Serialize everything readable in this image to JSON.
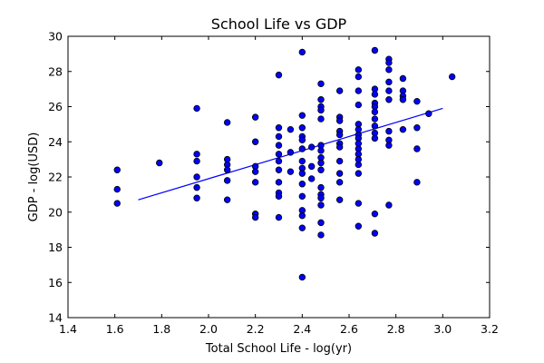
{
  "chart_data": {
    "type": "scatter",
    "title": "School Life vs GDP",
    "xlabel": "Total School Life - log(yr)",
    "ylabel": "GDP - log(USD)",
    "xlim": [
      1.4,
      3.2
    ],
    "ylim": [
      14,
      30
    ],
    "xticks": [
      "1.4",
      "1.6",
      "1.8",
      "2.0",
      "2.2",
      "2.4",
      "2.6",
      "2.8",
      "3.0",
      "3.2"
    ],
    "yticks": [
      "14",
      "16",
      "18",
      "20",
      "22",
      "24",
      "26",
      "28",
      "30"
    ],
    "grid": false,
    "marker_color": "#0000ff",
    "line_color": "#0000ff",
    "fit_line": {
      "x": [
        1.7,
        3.0
      ],
      "y": [
        20.7,
        25.9
      ]
    },
    "points": [
      [
        1.61,
        22.4
      ],
      [
        1.61,
        21.3
      ],
      [
        1.61,
        20.5
      ],
      [
        1.79,
        22.8
      ],
      [
        1.95,
        25.9
      ],
      [
        1.95,
        23.3
      ],
      [
        1.95,
        22.9
      ],
      [
        1.95,
        22.0
      ],
      [
        1.95,
        21.4
      ],
      [
        1.95,
        20.8
      ],
      [
        2.08,
        25.1
      ],
      [
        2.08,
        23.0
      ],
      [
        2.08,
        22.7
      ],
      [
        2.08,
        22.4
      ],
      [
        2.08,
        21.8
      ],
      [
        2.08,
        20.7
      ],
      [
        2.2,
        25.4
      ],
      [
        2.2,
        24.0
      ],
      [
        2.2,
        22.6
      ],
      [
        2.2,
        22.3
      ],
      [
        2.2,
        21.7
      ],
      [
        2.2,
        19.9
      ],
      [
        2.2,
        19.7
      ],
      [
        2.3,
        27.8
      ],
      [
        2.3,
        24.8
      ],
      [
        2.3,
        24.3
      ],
      [
        2.3,
        23.8
      ],
      [
        2.3,
        23.3
      ],
      [
        2.3,
        22.9
      ],
      [
        2.3,
        22.4
      ],
      [
        2.3,
        21.7
      ],
      [
        2.3,
        21.1
      ],
      [
        2.3,
        20.9
      ],
      [
        2.3,
        19.7
      ],
      [
        2.35,
        24.7
      ],
      [
        2.35,
        23.4
      ],
      [
        2.35,
        22.3
      ],
      [
        2.4,
        29.1
      ],
      [
        2.4,
        25.5
      ],
      [
        2.4,
        24.8
      ],
      [
        2.4,
        24.3
      ],
      [
        2.4,
        24.1
      ],
      [
        2.4,
        23.6
      ],
      [
        2.4,
        22.9
      ],
      [
        2.4,
        22.5
      ],
      [
        2.4,
        22.2
      ],
      [
        2.4,
        21.6
      ],
      [
        2.4,
        20.9
      ],
      [
        2.4,
        20.1
      ],
      [
        2.4,
        19.8
      ],
      [
        2.4,
        19.1
      ],
      [
        2.4,
        16.3
      ],
      [
        2.44,
        23.7
      ],
      [
        2.44,
        22.6
      ],
      [
        2.44,
        21.9
      ],
      [
        2.48,
        27.3
      ],
      [
        2.48,
        26.4
      ],
      [
        2.48,
        26.0
      ],
      [
        2.48,
        25.8
      ],
      [
        2.48,
        25.3
      ],
      [
        2.48,
        23.8
      ],
      [
        2.48,
        23.5
      ],
      [
        2.48,
        23.1
      ],
      [
        2.48,
        22.8
      ],
      [
        2.48,
        22.4
      ],
      [
        2.48,
        21.4
      ],
      [
        2.48,
        21.0
      ],
      [
        2.48,
        20.8
      ],
      [
        2.48,
        20.4
      ],
      [
        2.48,
        19.4
      ],
      [
        2.48,
        18.7
      ],
      [
        2.56,
        26.9
      ],
      [
        2.56,
        25.4
      ],
      [
        2.56,
        25.2
      ],
      [
        2.56,
        24.6
      ],
      [
        2.56,
        24.4
      ],
      [
        2.56,
        23.9
      ],
      [
        2.56,
        23.7
      ],
      [
        2.56,
        22.9
      ],
      [
        2.56,
        22.2
      ],
      [
        2.56,
        21.7
      ],
      [
        2.56,
        20.7
      ],
      [
        2.64,
        28.1
      ],
      [
        2.64,
        27.7
      ],
      [
        2.64,
        26.9
      ],
      [
        2.64,
        26.1
      ],
      [
        2.64,
        25.0
      ],
      [
        2.64,
        24.7
      ],
      [
        2.64,
        24.4
      ],
      [
        2.64,
        24.2
      ],
      [
        2.64,
        23.9
      ],
      [
        2.64,
        23.6
      ],
      [
        2.64,
        23.3
      ],
      [
        2.64,
        23.0
      ],
      [
        2.64,
        22.7
      ],
      [
        2.64,
        22.2
      ],
      [
        2.64,
        20.5
      ],
      [
        2.64,
        19.2
      ],
      [
        2.71,
        29.2
      ],
      [
        2.71,
        27.0
      ],
      [
        2.71,
        26.7
      ],
      [
        2.71,
        26.2
      ],
      [
        2.71,
        26.0
      ],
      [
        2.71,
        25.7
      ],
      [
        2.71,
        25.3
      ],
      [
        2.71,
        24.9
      ],
      [
        2.71,
        24.5
      ],
      [
        2.71,
        24.2
      ],
      [
        2.71,
        19.9
      ],
      [
        2.71,
        18.8
      ],
      [
        2.77,
        28.7
      ],
      [
        2.77,
        28.5
      ],
      [
        2.77,
        28.1
      ],
      [
        2.77,
        27.4
      ],
      [
        2.77,
        26.9
      ],
      [
        2.77,
        26.4
      ],
      [
        2.77,
        24.6
      ],
      [
        2.77,
        24.1
      ],
      [
        2.77,
        23.8
      ],
      [
        2.77,
        20.4
      ],
      [
        2.83,
        27.6
      ],
      [
        2.83,
        26.9
      ],
      [
        2.83,
        26.6
      ],
      [
        2.83,
        26.4
      ],
      [
        2.83,
        24.7
      ],
      [
        2.89,
        26.3
      ],
      [
        2.89,
        24.8
      ],
      [
        2.89,
        23.6
      ],
      [
        2.89,
        21.7
      ],
      [
        2.94,
        25.6
      ],
      [
        3.04,
        27.7
      ]
    ]
  }
}
